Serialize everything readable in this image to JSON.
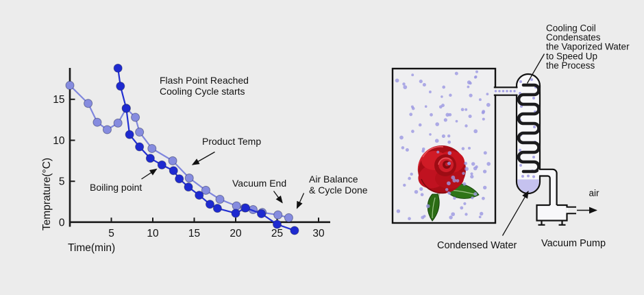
{
  "background": "#ececec",
  "text_color": "#111111",
  "chart_data": {
    "type": "line",
    "title": "",
    "xlabel": "Time(min)",
    "ylabel": "Temprature(°C)",
    "x_ticks": [
      5,
      10,
      15,
      20,
      25,
      30
    ],
    "y_ticks": [
      0,
      5,
      10,
      15
    ],
    "xlim": [
      0,
      31.5
    ],
    "ylim": [
      -1.5,
      19
    ],
    "grid": false,
    "legend": "none",
    "series": [
      {
        "id": "product",
        "label": "Product Temp",
        "color": "#7f86dd",
        "marker_color": "#868cdf",
        "x": [
          0,
          2.2,
          3.3,
          4.5,
          5.8,
          6.8,
          7.9,
          8.4,
          9.9,
          12.4,
          14.4,
          16.4,
          18.1,
          20.1,
          21.1,
          22.1,
          23.2,
          25.1,
          26.4
        ],
        "y": [
          16.7,
          14.5,
          12.2,
          11.3,
          12.1,
          13.9,
          12.8,
          11.0,
          9.0,
          7.5,
          5.4,
          3.9,
          2.8,
          2.0,
          1.75,
          1.55,
          1.2,
          0.9,
          0.55
        ]
      },
      {
        "id": "flash-cooling",
        "label": "",
        "color": "#2330d2",
        "marker_color": "#1e2ad0",
        "x": [
          5.8,
          6.1,
          6.8,
          7.2,
          8.4,
          9.7,
          11.1,
          12.5,
          13.2,
          14.3,
          15.6,
          16.9,
          17.8,
          20.0,
          21.2,
          23.1,
          25.0,
          27.1
        ],
        "y": [
          18.8,
          16.6,
          13.9,
          10.7,
          9.2,
          7.8,
          7.0,
          6.3,
          5.3,
          4.3,
          3.3,
          2.2,
          1.7,
          1.1,
          1.75,
          1.05,
          -0.25,
          -1.0
        ]
      }
    ],
    "annotations": {
      "flash_point": {
        "lines": [
          "Flash Point Reached",
          "Cooling Cycle starts"
        ]
      },
      "product_temp": {
        "lines": [
          "Product Temp"
        ]
      },
      "boiling_point": {
        "lines": [
          "Boiling point"
        ]
      },
      "vacuum_end": {
        "lines": [
          "Vacuum End"
        ]
      },
      "air_balance": {
        "lines": [
          "Air Balance",
          "& Cycle Done"
        ]
      }
    }
  },
  "diagram": {
    "labels": {
      "cooling_coil": {
        "lines": [
          "Cooling Coil",
          "Condensates",
          "the Vaporized Water",
          "to Speed Up",
          "the Process"
        ]
      },
      "condensed_water": "Condensed Water",
      "vacuum_pump": "Vacuum Pump",
      "air": "air"
    },
    "colors": {
      "vapor_dot": "#9b97e2",
      "condensed_water": "#c5c2ef",
      "coil": "#1c1c1e",
      "chamber_fill": "#efeff1",
      "vessel_fill": "#f8f8fa",
      "outline": "#111111",
      "rose_red": "#c41522",
      "leaf_green": "#2f7518"
    }
  }
}
